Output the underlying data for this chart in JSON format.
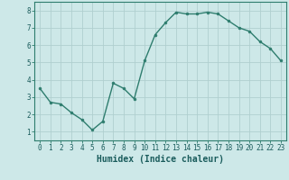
{
  "x": [
    0,
    1,
    2,
    3,
    4,
    5,
    6,
    7,
    8,
    9,
    10,
    11,
    12,
    13,
    14,
    15,
    16,
    17,
    18,
    19,
    20,
    21,
    22,
    23
  ],
  "y": [
    3.5,
    2.7,
    2.6,
    2.1,
    1.7,
    1.1,
    1.6,
    3.8,
    3.5,
    2.9,
    5.1,
    6.6,
    7.3,
    7.9,
    7.8,
    7.8,
    7.9,
    7.8,
    7.4,
    7.0,
    6.8,
    6.2,
    5.8,
    5.1
  ],
  "line_color": "#2e7d6e",
  "marker": "o",
  "marker_size": 2.0,
  "background_color": "#cde8e8",
  "grid_color": "#b0cfcf",
  "xlabel": "Humidex (Indice chaleur)",
  "xlim": [
    -0.5,
    23.5
  ],
  "ylim": [
    0.5,
    8.5
  ],
  "yticks": [
    1,
    2,
    3,
    4,
    5,
    6,
    7,
    8
  ],
  "xticks": [
    0,
    1,
    2,
    3,
    4,
    5,
    6,
    7,
    8,
    9,
    10,
    11,
    12,
    13,
    14,
    15,
    16,
    17,
    18,
    19,
    20,
    21,
    22,
    23
  ],
  "tick_label_color": "#1a5c5c",
  "xlabel_fontsize": 7,
  "tick_fontsize": 5.5,
  "line_width": 1.0,
  "spine_color": "#2e7d6e",
  "grid_linewidth": 0.6
}
